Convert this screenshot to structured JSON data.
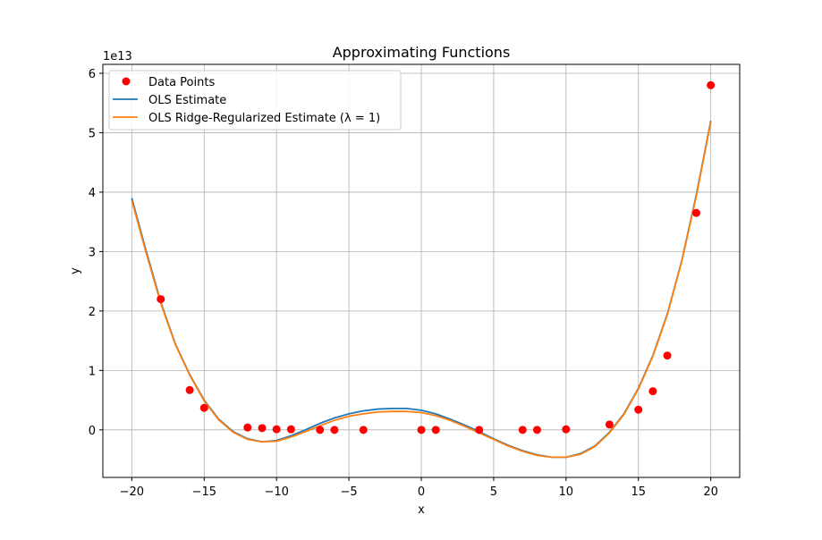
{
  "chart_data": {
    "type": "scatter",
    "title": "Approximating Functions",
    "xlabel": "x",
    "ylabel": "y",
    "y_exponent_label": "1e13",
    "xlim": [
      -22,
      22
    ],
    "ylim": [
      -0.8,
      6.15
    ],
    "x_ticks": [
      -20,
      -15,
      -10,
      -5,
      0,
      5,
      10,
      15,
      20
    ],
    "x_tick_labels": [
      "−20",
      "−15",
      "−10",
      "−5",
      "0",
      "5",
      "10",
      "15",
      "20"
    ],
    "y_ticks": [
      0,
      1,
      2,
      3,
      4,
      5,
      6
    ],
    "y_tick_labels": [
      "0",
      "1",
      "2",
      "3",
      "4",
      "5",
      "6"
    ],
    "grid": true,
    "legend_position": "top-left",
    "scatter": {
      "name": "Data Points",
      "color": "#ff0000",
      "points": [
        {
          "x": -18,
          "y": 2.2
        },
        {
          "x": -16,
          "y": 0.67
        },
        {
          "x": -15,
          "y": 0.37
        },
        {
          "x": -12,
          "y": 0.04
        },
        {
          "x": -11,
          "y": 0.03
        },
        {
          "x": -10,
          "y": 0.01
        },
        {
          "x": -9,
          "y": 0.01
        },
        {
          "x": -7,
          "y": 0.0
        },
        {
          "x": -6,
          "y": 0.0
        },
        {
          "x": -4,
          "y": 0.0
        },
        {
          "x": 0,
          "y": 0.0
        },
        {
          "x": 1,
          "y": 0.0
        },
        {
          "x": 4,
          "y": 0.0
        },
        {
          "x": 7,
          "y": 0.0
        },
        {
          "x": 8,
          "y": 0.0
        },
        {
          "x": 10,
          "y": 0.01
        },
        {
          "x": 13,
          "y": 0.09
        },
        {
          "x": 15,
          "y": 0.34
        },
        {
          "x": 16,
          "y": 0.65
        },
        {
          "x": 17,
          "y": 1.25
        },
        {
          "x": 19,
          "y": 3.65
        },
        {
          "x": 20,
          "y": 5.8
        }
      ]
    },
    "series": [
      {
        "name": "OLS Estimate",
        "color": "#1f77b4",
        "x": [
          -20,
          -19,
          -18,
          -17,
          -16,
          -15,
          -14,
          -13,
          -12,
          -11,
          -10,
          -9,
          -8,
          -7,
          -6,
          -5,
          -4,
          -3,
          -2,
          -1,
          0,
          1,
          2,
          3,
          4,
          5,
          6,
          7,
          8,
          9,
          10,
          11,
          12,
          13,
          14,
          15,
          16,
          17,
          18,
          19,
          20
        ],
        "y": [
          3.9,
          3.0,
          2.15,
          1.45,
          0.93,
          0.5,
          0.18,
          -0.03,
          -0.15,
          -0.2,
          -0.18,
          -0.1,
          0.0,
          0.11,
          0.2,
          0.27,
          0.32,
          0.35,
          0.36,
          0.36,
          0.33,
          0.27,
          0.18,
          0.08,
          -0.03,
          -0.15,
          -0.26,
          -0.35,
          -0.42,
          -0.46,
          -0.46,
          -0.4,
          -0.27,
          -0.04,
          0.27,
          0.7,
          1.25,
          1.95,
          2.85,
          3.95,
          5.2
        ]
      },
      {
        "name": "OLS Ridge-Regularized Estimate (λ = 1)",
        "color": "#ff7f0e",
        "x": [
          -20,
          -19,
          -18,
          -17,
          -16,
          -15,
          -14,
          -13,
          -12,
          -11,
          -10,
          -9,
          -8,
          -7,
          -6,
          -5,
          -4,
          -3,
          -2,
          -1,
          0,
          1,
          2,
          3,
          4,
          5,
          6,
          7,
          8,
          9,
          10,
          11,
          12,
          13,
          14,
          15,
          16,
          17,
          18,
          19,
          20
        ],
        "y": [
          3.86,
          2.97,
          2.13,
          1.44,
          0.92,
          0.49,
          0.17,
          -0.04,
          -0.16,
          -0.2,
          -0.19,
          -0.12,
          -0.03,
          0.07,
          0.16,
          0.23,
          0.27,
          0.3,
          0.31,
          0.31,
          0.29,
          0.24,
          0.16,
          0.06,
          -0.05,
          -0.16,
          -0.27,
          -0.36,
          -0.43,
          -0.46,
          -0.46,
          -0.41,
          -0.28,
          -0.05,
          0.26,
          0.69,
          1.24,
          1.94,
          2.84,
          3.93,
          5.18
        ]
      }
    ]
  }
}
